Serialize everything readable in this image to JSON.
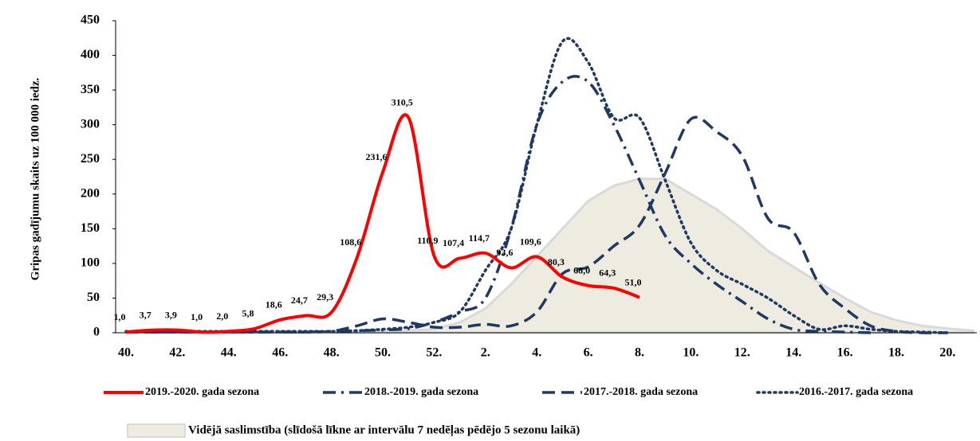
{
  "chart_data": {
    "type": "line",
    "y_label": "Gripas gadījumu skaits uz 100 000 iedz.",
    "categories": [
      "40.",
      null,
      "42.",
      null,
      "44.",
      null,
      "46.",
      null,
      "48.",
      null,
      "50.",
      null,
      "52.",
      null,
      "2.",
      null,
      "4.",
      null,
      "6.",
      null,
      "8.",
      null,
      "10.",
      null,
      "12.",
      null,
      "14.",
      null,
      "16.",
      null,
      "18.",
      null,
      "20.",
      null
    ],
    "ylim": [
      0,
      450
    ],
    "yticks": [
      0,
      50,
      100,
      150,
      200,
      250,
      300,
      350,
      400,
      450
    ],
    "grid": false,
    "series": [
      {
        "name": "Vidējā saslimstība (slīdošā līkne ar intervālu 7 nedēļas pēdējo 5 sezonu laikā)",
        "color": "#eeebe1",
        "style": "area",
        "values": [
          1,
          1,
          1,
          1,
          1,
          1,
          1,
          1,
          1,
          1,
          2,
          3,
          5,
          15,
          35,
          70,
          110,
          150,
          190,
          212,
          222,
          222,
          200,
          178,
          150,
          118,
          95,
          72,
          50,
          30,
          18,
          10,
          6,
          3
        ]
      },
      {
        "name": "2016.-2017. gada sezona",
        "color": "#1f3864",
        "style": "dot",
        "values": [
          2,
          2,
          2,
          2,
          2,
          2,
          2,
          2,
          2,
          3,
          5,
          8,
          15,
          30,
          90,
          150,
          300,
          420,
          390,
          310,
          310,
          220,
          130,
          90,
          70,
          50,
          25,
          5,
          10,
          5,
          2,
          1,
          0,
          null
        ]
      },
      {
        "name": "2017.-2018. gada sezona",
        "color": "#1f3864",
        "style": "dash",
        "values": [
          1,
          1,
          1,
          1,
          1,
          1,
          1,
          1,
          2,
          10,
          20,
          15,
          8,
          8,
          12,
          10,
          30,
          85,
          95,
          125,
          155,
          230,
          308,
          290,
          255,
          165,
          145,
          70,
          35,
          10,
          2,
          0,
          0,
          null
        ]
      },
      {
        "name": "2018.-2019. gada sezona",
        "color": "#1f3864",
        "style": "dashdot",
        "values": [
          1,
          1,
          1,
          1,
          1,
          1,
          1,
          1,
          2,
          3,
          4,
          6,
          15,
          30,
          50,
          150,
          300,
          362,
          362,
          300,
          220,
          140,
          100,
          70,
          45,
          20,
          5,
          2,
          1,
          0,
          null,
          null,
          null,
          null
        ]
      },
      {
        "name": "2019.-2020. gada sezona",
        "color": "#ff0000",
        "style": "solid",
        "values": [
          1.0,
          3.7,
          3.9,
          1.0,
          2.0,
          5.8,
          18.6,
          24.7,
          29.3,
          108.6,
          231.6,
          310.5,
          110.9,
          107.4,
          114.7,
          93.6,
          109.6,
          80.3,
          68.0,
          64.3,
          51.0,
          null,
          null,
          null,
          null,
          null,
          null,
          null,
          null,
          null,
          null,
          null,
          null,
          null
        ],
        "value_labels": [
          "1,0",
          "3,7",
          "3,9",
          "1,0",
          "2,0",
          "5,8",
          "18,6",
          "24,7",
          "29,3",
          "108,6",
          "231,6",
          "310,5",
          "110,9",
          "107,4",
          "114,7",
          "93,6",
          "109,6",
          "80,3",
          "68,0",
          "64,3",
          "51,0",
          null,
          null,
          null,
          null,
          null,
          null,
          null,
          null,
          null,
          null,
          null,
          null,
          null
        ]
      }
    ]
  }
}
